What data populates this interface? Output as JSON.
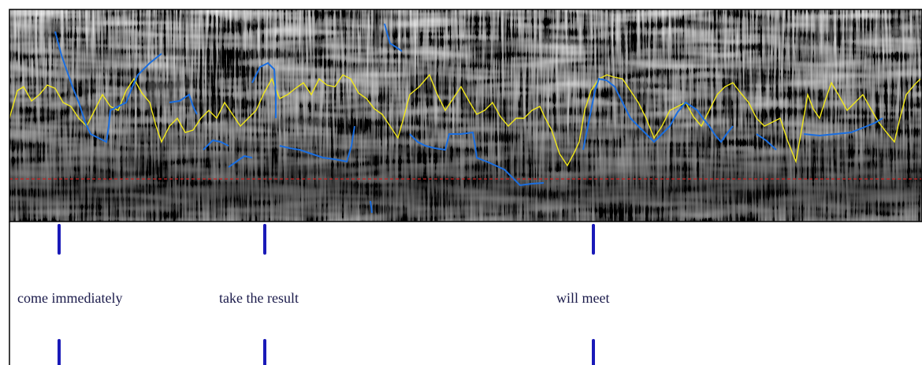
{
  "labels": [
    "come immediately",
    "take the result",
    "will meet"
  ]
}
